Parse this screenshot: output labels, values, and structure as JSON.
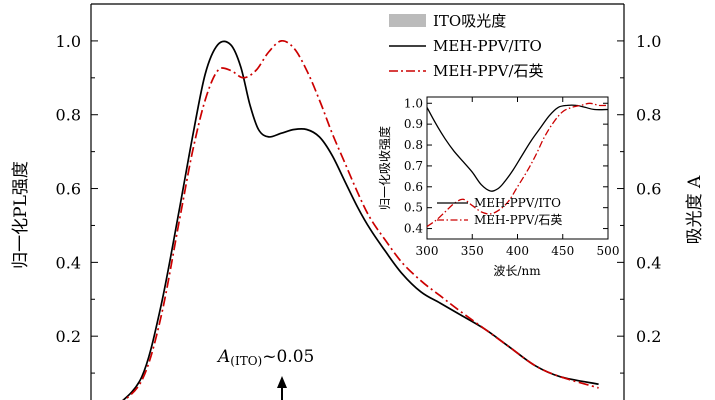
{
  "chart_data": [
    {
      "type": "line",
      "ylabel_left": "归一化PL强度",
      "ylabel_right": "吸光度 A",
      "ylim": [
        0,
        1.1
      ],
      "y_ticks": [
        "0.2",
        "0.4",
        "0.6",
        "0.8",
        "1.0"
      ],
      "y_tick_values": [
        0.2,
        0.4,
        0.6,
        0.8,
        1.0
      ],
      "annotation": {
        "text_main": "A",
        "text_sub": "(ITO)",
        "text_rest": "~0.05"
      },
      "legend": [
        {
          "label": "ITO吸光度",
          "style": "patch",
          "color": "#bbbbbb"
        },
        {
          "label": "MEH-PPV/ITO",
          "style": "solid",
          "color": "#000000"
        },
        {
          "label": "MEH-PPV/石英",
          "style": "dashdot",
          "color": "#cc0000"
        }
      ],
      "series": [
        {
          "name": "MEH-PPV/ITO",
          "color": "#000000",
          "x": [
            500,
            520,
            535,
            550,
            560,
            570,
            580,
            590,
            598,
            605,
            612,
            620,
            630,
            640,
            650,
            660,
            670,
            680,
            690,
            700,
            712,
            725,
            740,
            755,
            770,
            790,
            810,
            830,
            850,
            880
          ],
          "y": [
            0.01,
            0.09,
            0.28,
            0.55,
            0.74,
            0.91,
            0.99,
            0.99,
            0.93,
            0.83,
            0.76,
            0.74,
            0.75,
            0.76,
            0.76,
            0.74,
            0.69,
            0.62,
            0.55,
            0.49,
            0.43,
            0.37,
            0.32,
            0.29,
            0.26,
            0.22,
            0.17,
            0.12,
            0.09,
            0.07
          ]
        },
        {
          "name": "MEH-PPV/石英",
          "color": "#cc0000",
          "x": [
            500,
            520,
            535,
            550,
            560,
            570,
            580,
            590,
            600,
            610,
            620,
            630,
            640,
            650,
            660,
            670,
            680,
            690,
            700,
            712,
            725,
            740,
            755,
            770,
            790,
            810,
            830,
            850,
            880
          ],
          "y": [
            0.01,
            0.08,
            0.25,
            0.52,
            0.7,
            0.84,
            0.92,
            0.92,
            0.9,
            0.92,
            0.97,
            1.0,
            0.98,
            0.92,
            0.84,
            0.75,
            0.67,
            0.59,
            0.52,
            0.46,
            0.4,
            0.35,
            0.31,
            0.27,
            0.22,
            0.17,
            0.12,
            0.09,
            0.06
          ]
        }
      ]
    },
    {
      "type": "line",
      "xlabel": "波长/nm",
      "ylabel": "归一化吸收强度",
      "xlim": [
        300,
        500
      ],
      "ylim": [
        0.4,
        1.02
      ],
      "x_ticks": [
        "300",
        "350",
        "400",
        "450",
        "500"
      ],
      "x_tick_values": [
        300,
        350,
        400,
        450,
        500
      ],
      "y_ticks": [
        "0.4",
        "0.5",
        "0.6",
        "0.7",
        "0.8",
        "0.9",
        "1.0"
      ],
      "y_tick_values": [
        0.4,
        0.5,
        0.6,
        0.7,
        0.8,
        0.9,
        1.0
      ],
      "legend": [
        {
          "label": "MEH-PPV/ITO",
          "style": "solid",
          "color": "#000000"
        },
        {
          "label": "MEH-PPV/石英",
          "style": "dashdot",
          "color": "#cc0000"
        }
      ],
      "series": [
        {
          "name": "MEH-PPV/ITO",
          "color": "#000000",
          "x": [
            300,
            310,
            320,
            330,
            340,
            350,
            360,
            370,
            378,
            385,
            395,
            405,
            415,
            425,
            435,
            445,
            455,
            465,
            475,
            485,
            500
          ],
          "y": [
            0.98,
            0.9,
            0.83,
            0.77,
            0.72,
            0.67,
            0.61,
            0.58,
            0.59,
            0.62,
            0.68,
            0.75,
            0.82,
            0.88,
            0.94,
            0.98,
            0.99,
            0.99,
            0.98,
            0.97,
            0.97
          ]
        },
        {
          "name": "MEH-PPV/石英",
          "color": "#cc0000",
          "x": [
            300,
            310,
            320,
            330,
            340,
            350,
            360,
            370,
            380,
            390,
            400,
            410,
            420,
            430,
            440,
            450,
            460,
            470,
            480,
            490,
            500
          ],
          "y": [
            0.41,
            0.44,
            0.48,
            0.52,
            0.54,
            0.51,
            0.48,
            0.47,
            0.49,
            0.53,
            0.6,
            0.67,
            0.75,
            0.84,
            0.91,
            0.96,
            0.98,
            0.99,
            1.0,
            0.99,
            0.99
          ]
        }
      ]
    }
  ]
}
